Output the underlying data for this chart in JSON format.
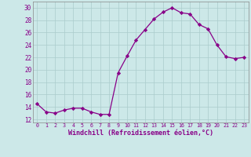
{
  "x": [
    0,
    1,
    2,
    3,
    4,
    5,
    6,
    7,
    8,
    9,
    10,
    11,
    12,
    13,
    14,
    15,
    16,
    17,
    18,
    19,
    20,
    21,
    22,
    23
  ],
  "y": [
    14.5,
    13.2,
    13.0,
    13.5,
    13.8,
    13.8,
    13.2,
    12.8,
    12.8,
    19.5,
    22.2,
    24.8,
    26.5,
    28.2,
    29.3,
    30.0,
    29.2,
    29.0,
    27.3,
    26.6,
    24.0,
    22.1,
    21.8,
    22.0
  ],
  "line_color": "#880088",
  "marker": "D",
  "marker_size": 2.2,
  "bg_color": "#cce8e8",
  "grid_color": "#aacccc",
  "xlabel": "Windchill (Refroidissement éolien,°C)",
  "xlabel_color": "#880088",
  "tick_color": "#880088",
  "ylim": [
    11.5,
    31
  ],
  "xlim": [
    -0.5,
    23.5
  ],
  "yticks": [
    12,
    14,
    16,
    18,
    20,
    22,
    24,
    26,
    28,
    30
  ],
  "xticks": [
    0,
    1,
    2,
    3,
    4,
    5,
    6,
    7,
    8,
    9,
    10,
    11,
    12,
    13,
    14,
    15,
    16,
    17,
    18,
    19,
    20,
    21,
    22,
    23
  ],
  "ytick_fontsize": 5.5,
  "xtick_fontsize": 4.8,
  "xlabel_fontsize": 6.0
}
